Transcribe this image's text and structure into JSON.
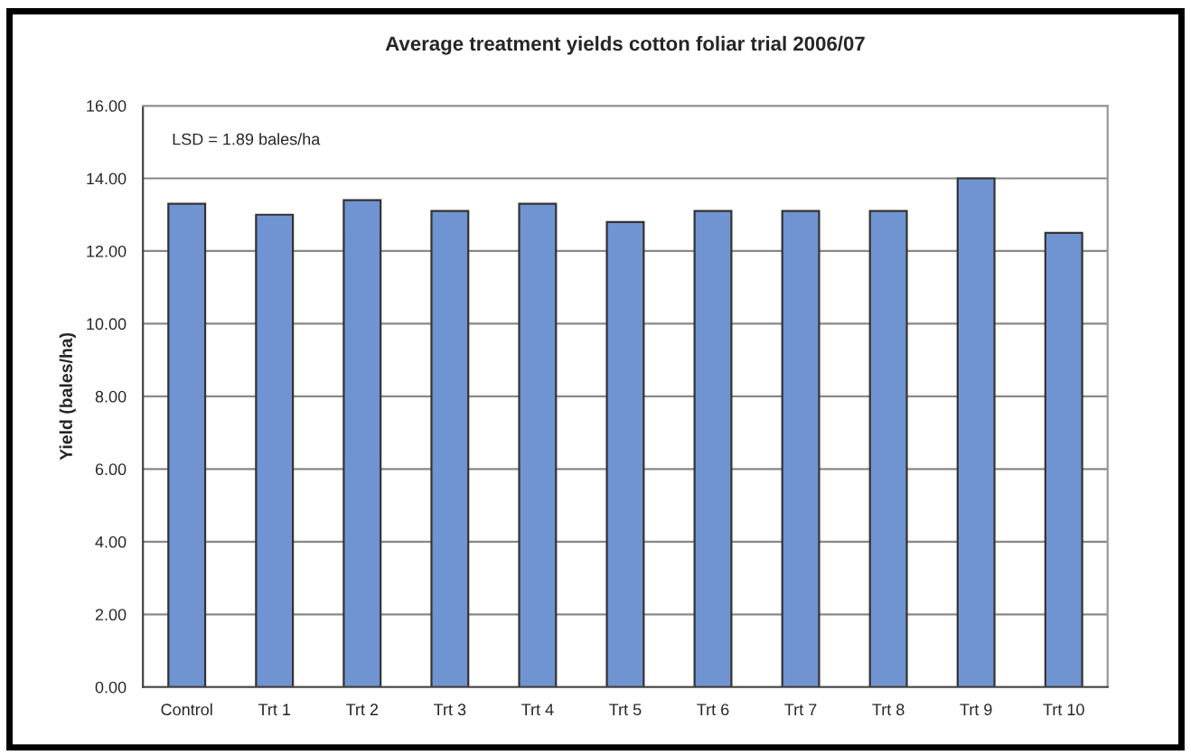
{
  "chart_data": {
    "type": "bar",
    "title": "Average treatment yields cotton foliar trial 2006/07",
    "ylabel": "Yield (bales/ha)",
    "categories": [
      "Control",
      "Trt 1",
      "Trt 2",
      "Trt 3",
      "Trt 4",
      "Trt 5",
      "Trt 6",
      "Trt 7",
      "Trt 8",
      "Trt 9",
      "Trt 10"
    ],
    "values": [
      13.3,
      13.0,
      13.4,
      13.1,
      13.3,
      12.8,
      13.1,
      13.1,
      13.1,
      14.0,
      12.5
    ],
    "color": "#7094d2",
    "ylim": [
      0,
      16
    ],
    "yticks": [
      {
        "value": 0,
        "label": "0.00"
      },
      {
        "value": 2,
        "label": "2.00"
      },
      {
        "value": 4,
        "label": "4.00"
      },
      {
        "value": 6,
        "label": "6.00"
      },
      {
        "value": 8,
        "label": "8.00"
      },
      {
        "value": 10,
        "label": "10.00"
      },
      {
        "value": 12,
        "label": "12.00"
      },
      {
        "value": 14,
        "label": "14.00"
      },
      {
        "value": 16,
        "label": "16.00"
      }
    ],
    "annotations": [
      "LSD = 1.89 bales/ha"
    ],
    "grid": "y"
  }
}
